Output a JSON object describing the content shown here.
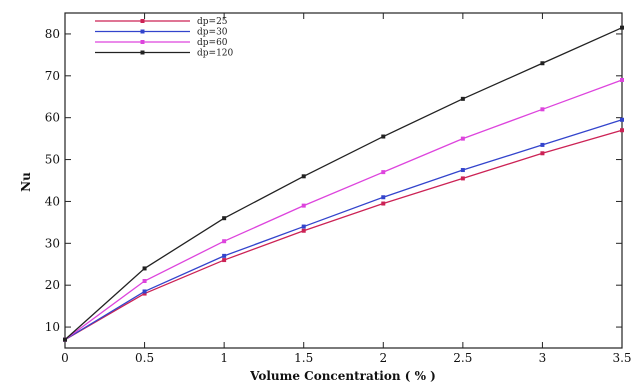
{
  "chart_data": {
    "type": "line",
    "title": "",
    "xlabel": "Volume Concentration ( % )",
    "ylabel": "Nu",
    "xlim": [
      0,
      3.5
    ],
    "ylim": [
      5,
      85
    ],
    "x_ticks": [
      "0",
      "0.5",
      "1",
      "1.5",
      "2",
      "2.5",
      "3",
      "3.5"
    ],
    "y_ticks": [
      "10",
      "20",
      "30",
      "40",
      "50",
      "60",
      "70",
      "80"
    ],
    "grid": false,
    "legend": "top-left",
    "x": [
      0,
      0.5,
      1,
      1.5,
      2,
      2.5,
      3,
      3.5
    ],
    "series": [
      {
        "name": "dp=25",
        "color": "#cc2255",
        "values": [
          7,
          18,
          26,
          33,
          39.5,
          45.5,
          51.5,
          57
        ]
      },
      {
        "name": "dp=30",
        "color": "#3344cc",
        "values": [
          7,
          18.5,
          27,
          34,
          41,
          47.5,
          53.5,
          59.5
        ]
      },
      {
        "name": "dp=60",
        "color": "#dd44dd",
        "values": [
          7,
          21,
          30.5,
          39,
          47,
          55,
          62,
          69
        ]
      },
      {
        "name": "dp=120",
        "color": "#222222",
        "values": [
          7,
          24,
          36,
          46,
          55.5,
          64.5,
          73,
          81.5
        ]
      }
    ]
  }
}
